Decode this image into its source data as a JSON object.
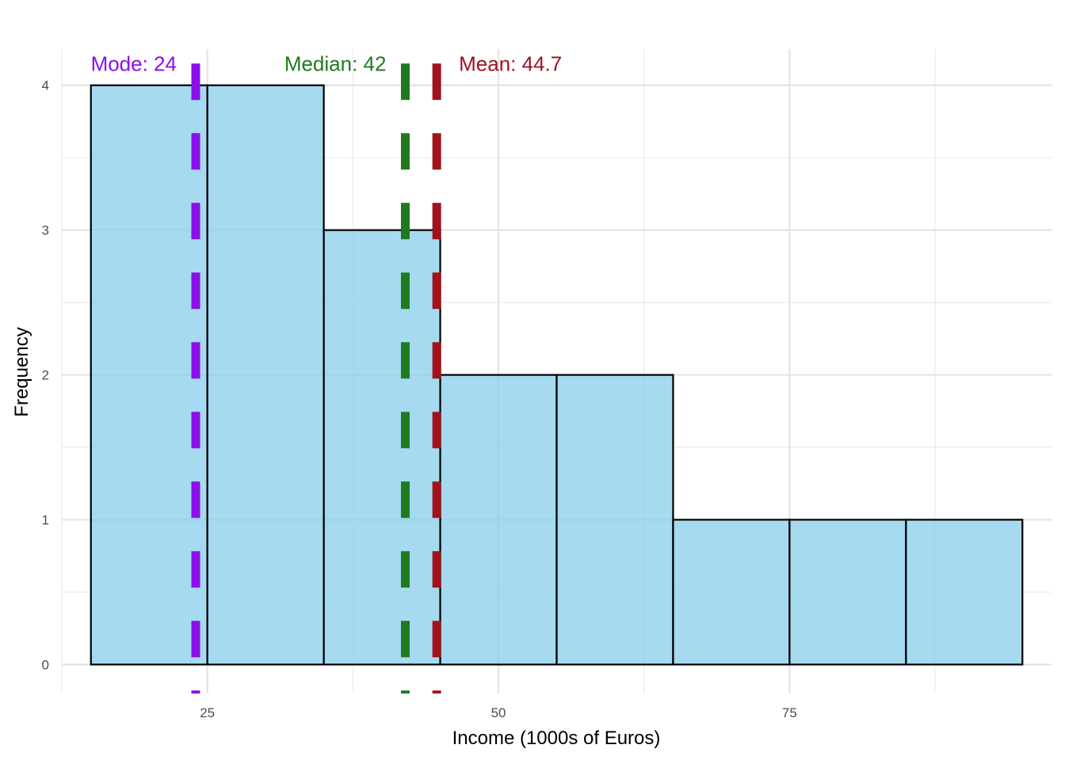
{
  "chart_data": {
    "type": "histogram",
    "title": "",
    "xlabel": "Income (1000s of Euros)",
    "ylabel": "Frequency",
    "xlim": [
      12.5,
      97.5
    ],
    "ylim": [
      -0.2,
      4.25
    ],
    "x_ticks": [
      25,
      50,
      75
    ],
    "y_ticks": [
      0,
      1,
      2,
      3,
      4
    ],
    "grid": true,
    "bin_width": 10,
    "bins": [
      {
        "start": 15,
        "end": 25,
        "count": 4
      },
      {
        "start": 25,
        "end": 35,
        "count": 4
      },
      {
        "start": 35,
        "end": 45,
        "count": 3
      },
      {
        "start": 45,
        "end": 55,
        "count": 2
      },
      {
        "start": 55,
        "end": 65,
        "count": 2
      },
      {
        "start": 65,
        "end": 75,
        "count": 1
      },
      {
        "start": 75,
        "end": 85,
        "count": 1
      },
      {
        "start": 85,
        "end": 95,
        "count": 1
      }
    ],
    "bar_fill": "#87CEEB",
    "bar_outline": "#000000",
    "reference_lines": [
      {
        "label": "Mode: 24",
        "value": 24,
        "color": "#8B0EEB"
      },
      {
        "label": "Median: 42",
        "value": 42,
        "color": "#1F7A1F"
      },
      {
        "label": "Mean: 44.7",
        "value": 44.7,
        "color": "#A0121C"
      }
    ]
  }
}
